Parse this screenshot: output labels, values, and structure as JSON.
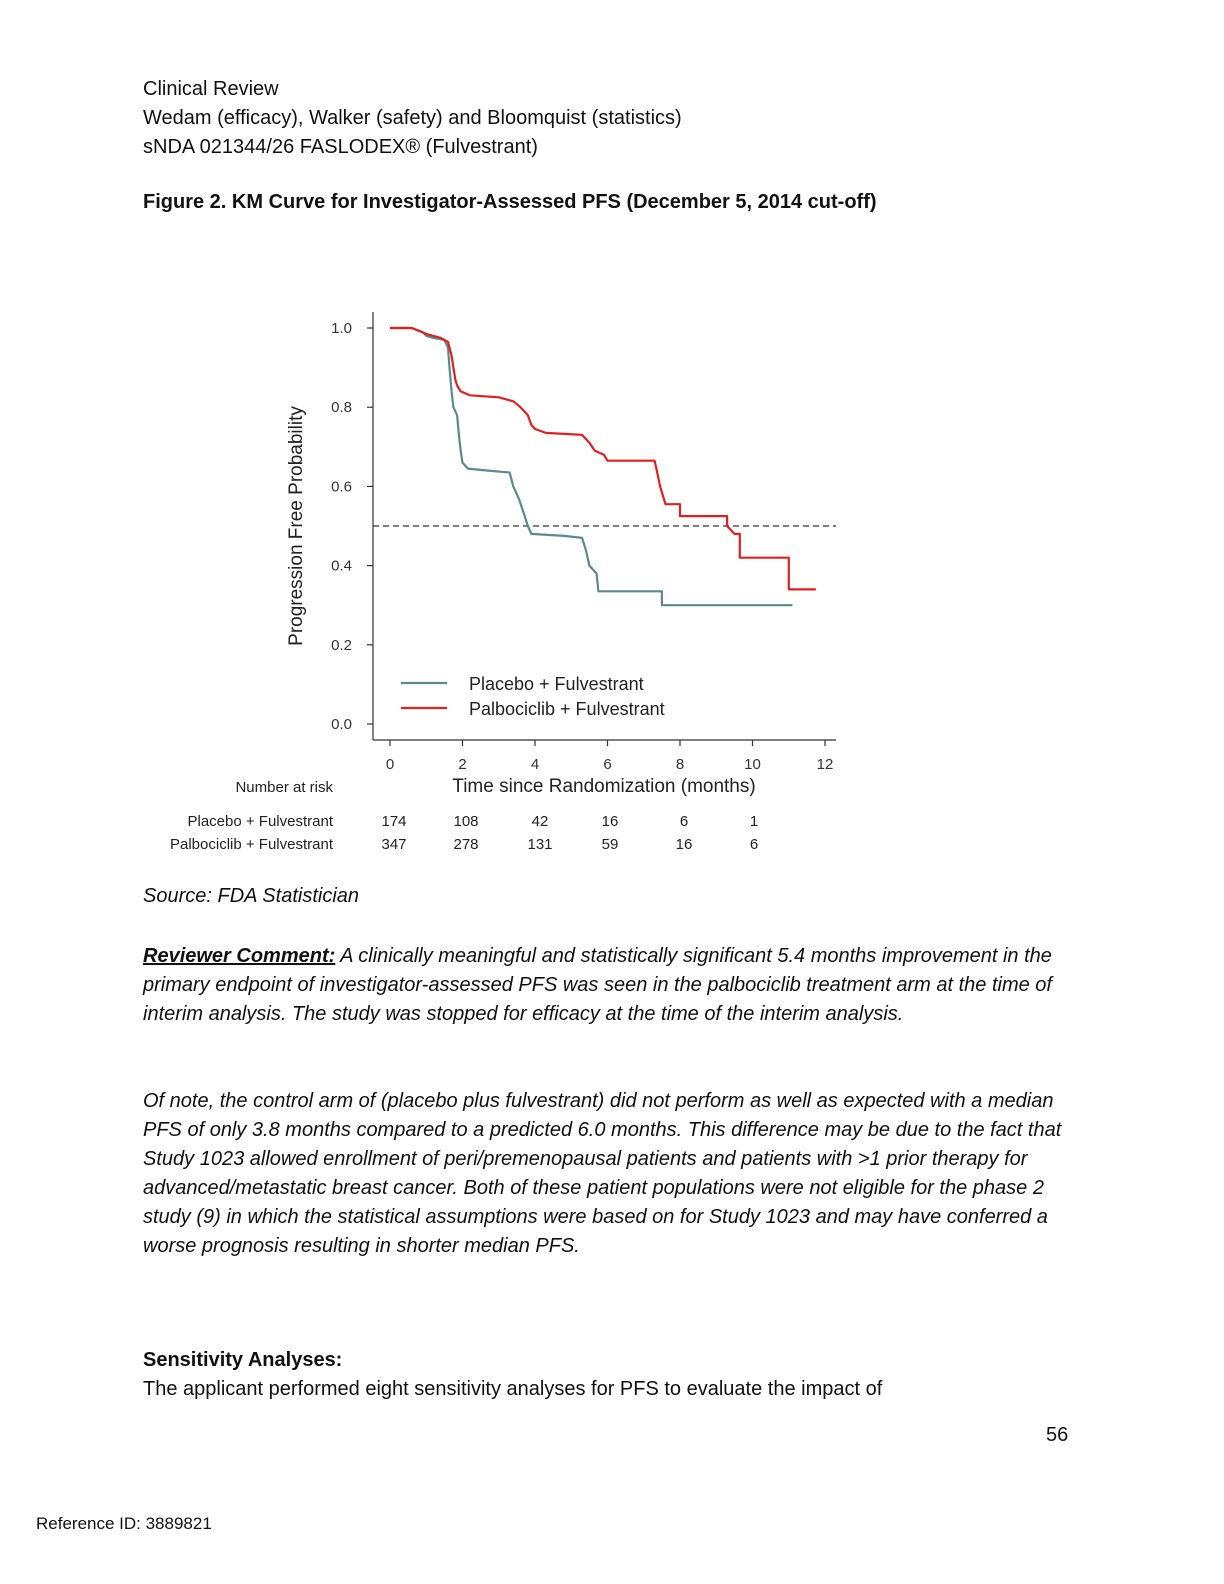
{
  "header": {
    "line1": "Clinical Review",
    "line2": "Wedam (efficacy), Walker (safety) and Bloomquist (statistics)",
    "line3": "sNDA 021344/26 FASLODEX® (Fulvestrant)"
  },
  "figure_title": "Figure 2. KM Curve for Investigator-Assessed PFS (December 5, 2014 cut-off)",
  "chart_data": {
    "type": "line",
    "subtype": "kaplan-meier step",
    "xlabel": "Time since Randomization (months)",
    "ylabel": "Progression Free Probability",
    "xlim": [
      0,
      12
    ],
    "ylim": [
      0,
      1
    ],
    "xticks": [
      0,
      2,
      4,
      6,
      8,
      10,
      12
    ],
    "yticks": [
      0.0,
      0.2,
      0.4,
      0.6,
      0.8,
      1.0
    ],
    "ytick_labels": [
      "0.0",
      "0.2",
      "0.4",
      "0.6",
      "0.8",
      "1.0"
    ],
    "reference_line": {
      "y": 0.5,
      "style": "dashed"
    },
    "legend_position": "lower-left inside",
    "series": [
      {
        "name": "Placebo + Fulvestrant",
        "color": "#5a8a91",
        "points": [
          [
            0,
            1.0
          ],
          [
            0.6,
            1.0
          ],
          [
            0.9,
            0.99
          ],
          [
            1.0,
            0.98
          ],
          [
            1.2,
            0.975
          ],
          [
            1.5,
            0.97
          ],
          [
            1.6,
            0.95
          ],
          [
            1.65,
            0.89
          ],
          [
            1.7,
            0.84
          ],
          [
            1.75,
            0.8
          ],
          [
            1.85,
            0.78
          ],
          [
            1.9,
            0.73
          ],
          [
            1.95,
            0.69
          ],
          [
            2.0,
            0.66
          ],
          [
            2.15,
            0.645
          ],
          [
            2.7,
            0.64
          ],
          [
            3.3,
            0.635
          ],
          [
            3.4,
            0.6
          ],
          [
            3.55,
            0.57
          ],
          [
            3.7,
            0.53
          ],
          [
            3.8,
            0.5
          ],
          [
            3.9,
            0.48
          ],
          [
            4.8,
            0.475
          ],
          [
            5.3,
            0.47
          ],
          [
            5.4,
            0.44
          ],
          [
            5.5,
            0.4
          ],
          [
            5.7,
            0.38
          ],
          [
            5.75,
            0.335
          ],
          [
            7.5,
            0.335
          ],
          [
            7.5,
            0.3
          ],
          [
            11.1,
            0.3
          ]
        ]
      },
      {
        "name": "Palbociclib + Fulvestrant",
        "color": "#e02020",
        "points": [
          [
            0,
            1.0
          ],
          [
            0.6,
            1.0
          ],
          [
            1.0,
            0.985
          ],
          [
            1.4,
            0.975
          ],
          [
            1.6,
            0.965
          ],
          [
            1.7,
            0.93
          ],
          [
            1.8,
            0.87
          ],
          [
            1.85,
            0.855
          ],
          [
            1.95,
            0.84
          ],
          [
            2.2,
            0.83
          ],
          [
            3.0,
            0.825
          ],
          [
            3.4,
            0.815
          ],
          [
            3.6,
            0.8
          ],
          [
            3.8,
            0.78
          ],
          [
            3.9,
            0.755
          ],
          [
            4.0,
            0.745
          ],
          [
            4.3,
            0.735
          ],
          [
            5.3,
            0.73
          ],
          [
            5.5,
            0.71
          ],
          [
            5.65,
            0.69
          ],
          [
            5.9,
            0.68
          ],
          [
            6.0,
            0.665
          ],
          [
            7.3,
            0.665
          ],
          [
            7.35,
            0.645
          ],
          [
            7.45,
            0.6
          ],
          [
            7.55,
            0.57
          ],
          [
            7.6,
            0.555
          ],
          [
            8.0,
            0.555
          ],
          [
            8.0,
            0.525
          ],
          [
            9.3,
            0.525
          ],
          [
            9.3,
            0.5
          ],
          [
            9.5,
            0.48
          ],
          [
            9.65,
            0.48
          ],
          [
            9.65,
            0.42
          ],
          [
            11.0,
            0.42
          ],
          [
            11.0,
            0.34
          ],
          [
            11.75,
            0.34
          ]
        ]
      }
    ],
    "risk_table": {
      "title": "Number at risk",
      "times": [
        0,
        2,
        4,
        6,
        8,
        10
      ],
      "rows": [
        {
          "label": "Placebo + Fulvestrant",
          "values": [
            174,
            108,
            42,
            16,
            6,
            1
          ]
        },
        {
          "label": "Palbociclib + Fulvestrant",
          "values": [
            347,
            278,
            131,
            59,
            16,
            6
          ]
        }
      ]
    }
  },
  "source": "Source: FDA Statistician",
  "reviewer_comment": {
    "label": "Reviewer Comment:",
    "text": " A clinically meaningful and statistically significant 5.4 months improvement in the primary endpoint of investigator-assessed PFS was seen in the palbociclib treatment arm at the time of interim analysis.  The study was stopped for efficacy at the time of the interim analysis."
  },
  "note_paragraph": "Of note, the control arm of (placebo plus fulvestrant) did not perform as well as expected with a median PFS of only 3.8 months compared to a predicted 6.0 months.  This difference may be due to the fact that Study 1023 allowed enrollment of peri/premenopausal patients and patients with >1 prior therapy for advanced/metastatic breast cancer.  Both of these patient populations were not eligible for the phase 2 study (9) in which the statistical assumptions were based on for Study 1023 and may have conferred a worse prognosis resulting in shorter median PFS.",
  "section_heading": "Sensitivity Analyses:",
  "section_text": "The applicant performed eight sensitivity analyses for PFS to evaluate the impact of",
  "page_number": "56",
  "reference_id": "Reference ID: 3889821"
}
